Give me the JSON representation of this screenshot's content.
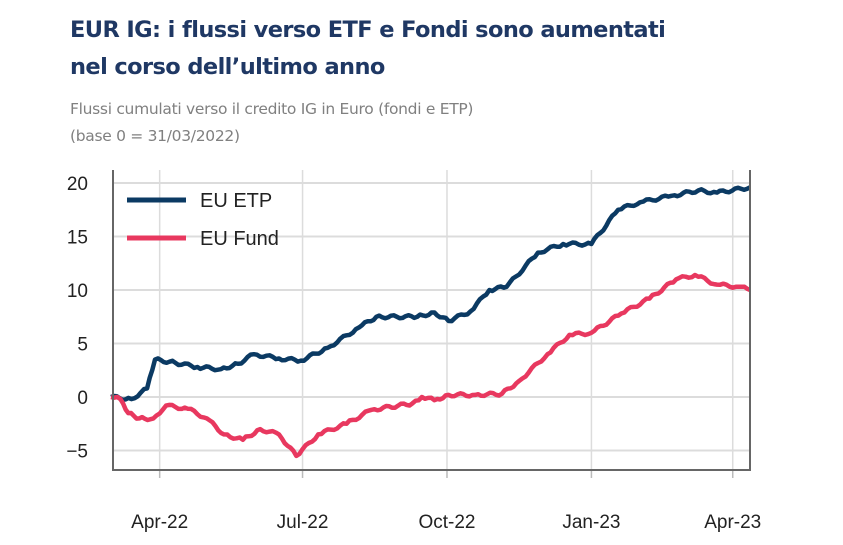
{
  "header": {
    "title_line1": "EUR IG: i flussi verso ETF e Fondi sono aumentati",
    "title_line2": "nel corso dell’ultimo anno",
    "subtitle_line1": "Flussi cumulati verso il credito IG in Euro (fondi e ETP)",
    "subtitle_line2": "(base 0 = 31/03/2022)"
  },
  "chart_data": {
    "type": "line",
    "title": "",
    "xlabel": "",
    "ylabel": "",
    "xlim": [
      "2022-03-01",
      "2023-04-12"
    ],
    "ylim": [
      -7,
      21
    ],
    "yticks": [
      -5,
      0,
      5,
      10,
      15,
      20
    ],
    "ytick_labels": [
      "−5",
      "0",
      "5",
      "10",
      "15",
      "20"
    ],
    "xticks": [
      "2022-04-01",
      "2022-07-01",
      "2022-10-01",
      "2023-01-01",
      "2023-04-01"
    ],
    "xtick_labels": [
      "Apr-22",
      "Jul-22",
      "Oct-22",
      "Jan-23",
      "Apr-23"
    ],
    "grid": true,
    "legend": "top-left",
    "series": [
      {
        "name": "EU ETP",
        "color": "#0b3a63",
        "points": [
          [
            "2022-03-01",
            0
          ],
          [
            "2022-03-14",
            -0.2
          ],
          [
            "2022-03-24",
            0.8
          ],
          [
            "2022-03-29",
            3.5
          ],
          [
            "2022-04-11",
            3.2
          ],
          [
            "2022-04-25",
            2.8
          ],
          [
            "2022-05-10",
            2.6
          ],
          [
            "2022-05-21",
            3.1
          ],
          [
            "2022-05-31",
            4
          ],
          [
            "2022-06-16",
            3.6
          ],
          [
            "2022-06-30",
            3.4
          ],
          [
            "2022-07-17",
            4.6
          ],
          [
            "2022-08-06",
            6.5
          ],
          [
            "2022-08-17",
            7.5
          ],
          [
            "2022-09-12",
            7.5
          ],
          [
            "2022-09-23",
            7.9
          ],
          [
            "2022-10-02",
            7.1
          ],
          [
            "2022-10-16",
            8
          ],
          [
            "2022-10-28",
            10
          ],
          [
            "2022-11-08",
            10.3
          ],
          [
            "2022-11-28",
            13.5
          ],
          [
            "2022-12-14",
            14.3
          ],
          [
            "2023-01-01",
            14.3
          ],
          [
            "2023-01-18",
            17.5
          ],
          [
            "2023-02-01",
            18.2
          ],
          [
            "2023-02-21",
            18.8
          ],
          [
            "2023-03-10",
            19.3
          ],
          [
            "2023-03-22",
            19.1
          ],
          [
            "2023-04-12",
            19.6
          ]
        ]
      },
      {
        "name": "EU Fund",
        "color": "#e8385f",
        "points": [
          [
            "2022-03-01",
            0
          ],
          [
            "2022-03-07",
            -0.2
          ],
          [
            "2022-03-12",
            -1.5
          ],
          [
            "2022-03-19",
            -2
          ],
          [
            "2022-03-28",
            -2
          ],
          [
            "2022-04-05",
            -0.8
          ],
          [
            "2022-04-19",
            -1.1
          ],
          [
            "2022-05-01",
            -2
          ],
          [
            "2022-05-12",
            -3.5
          ],
          [
            "2022-05-24",
            -4
          ],
          [
            "2022-06-04",
            -3
          ],
          [
            "2022-06-16",
            -3.5
          ],
          [
            "2022-06-27",
            -5.5
          ],
          [
            "2022-07-11",
            -3.5
          ],
          [
            "2022-07-29",
            -2.5
          ],
          [
            "2022-08-14",
            -1.2
          ],
          [
            "2022-09-09",
            -0.6
          ],
          [
            "2022-09-15",
            0
          ],
          [
            "2022-09-23",
            -0.3
          ],
          [
            "2022-10-02",
            0.2
          ],
          [
            "2022-10-19",
            0.2
          ],
          [
            "2022-11-05",
            0.3
          ],
          [
            "2022-11-16",
            1.5
          ],
          [
            "2022-12-04",
            4
          ],
          [
            "2022-12-18",
            5.8
          ],
          [
            "2023-01-01",
            6
          ],
          [
            "2023-01-20",
            7.8
          ],
          [
            "2023-02-07",
            9.2
          ],
          [
            "2023-02-24",
            11
          ],
          [
            "2023-03-08",
            11.4
          ],
          [
            "2023-03-22",
            10.5
          ],
          [
            "2023-04-05",
            10.3
          ],
          [
            "2023-04-12",
            10
          ]
        ]
      }
    ]
  }
}
